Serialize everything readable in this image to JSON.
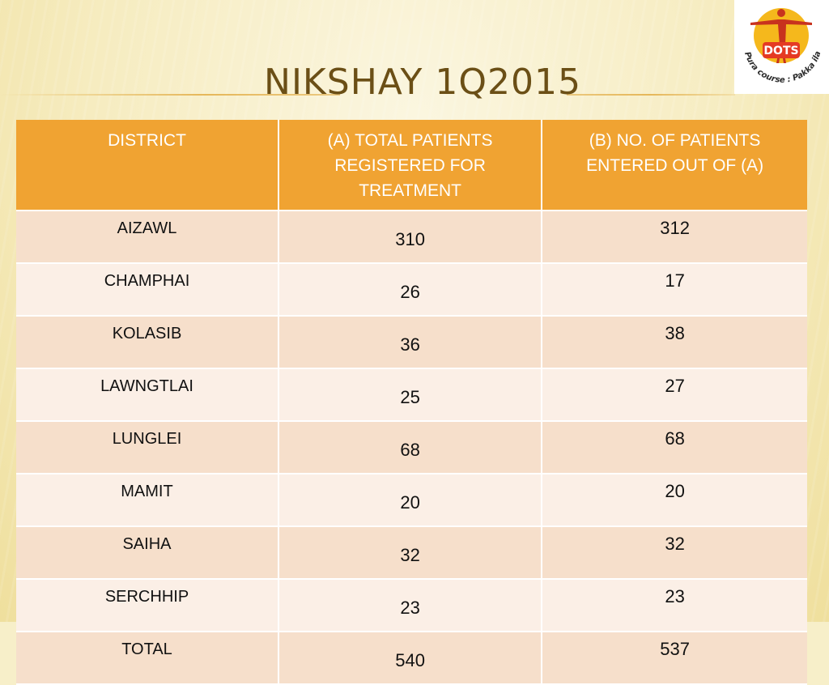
{
  "slide": {
    "title": "NIKSHAY 1Q2015",
    "logo": {
      "text": "DOTS",
      "tagline": "Pura course : Pakka ilaaj",
      "colors": {
        "figure": "#c8321e",
        "sun": "#f5b81c",
        "badge": "#e53a23"
      }
    }
  },
  "table": {
    "headers": [
      {
        "line1": "DISTRICT",
        "line2": "",
        "line3": ""
      },
      {
        "line1": "(A) TOTAL PATIENTS",
        "line2": "REGISTERED FOR",
        "line3": "TREATMENT"
      },
      {
        "line1": "(B) NO. OF PATIENTS",
        "line2": "ENTERED OUT OF (A)",
        "line3": ""
      }
    ],
    "rows": [
      {
        "district": "AIZAWL",
        "a": "310",
        "b": "312"
      },
      {
        "district": "CHAMPHAI",
        "a": "26",
        "b": "17"
      },
      {
        "district": "KOLASIB",
        "a": "36",
        "b": "38"
      },
      {
        "district": "LAWNGTLAI",
        "a": "25",
        "b": "27"
      },
      {
        "district": "LUNGLEI",
        "a": "68",
        "b": "68"
      },
      {
        "district": "MAMIT",
        "a": "20",
        "b": "20"
      },
      {
        "district": "SAIHA",
        "a": "32",
        "b": "32"
      },
      {
        "district": "SERCHHIP",
        "a": "23",
        "b": "23"
      },
      {
        "district": "TOTAL",
        "a": "540",
        "b": "537"
      }
    ]
  },
  "colors": {
    "header_bg": "#f0a332",
    "row_odd": "#f6dfcb",
    "row_even": "#fbefe6",
    "title": "#6b4f16"
  }
}
